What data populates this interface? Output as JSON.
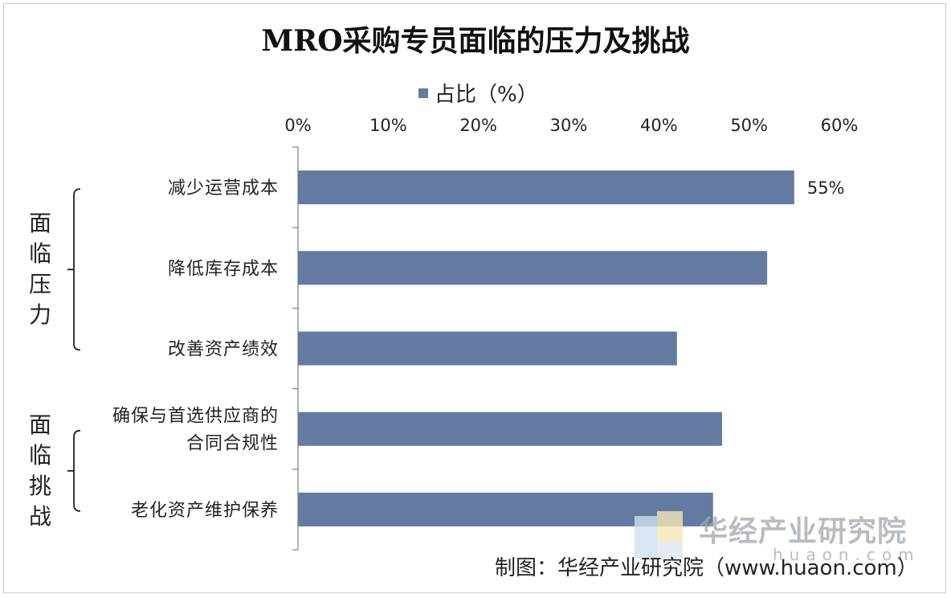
{
  "chart_data": {
    "type": "bar",
    "orientation": "horizontal",
    "title": "MRO采购专员面临的压力及挑战",
    "legend": {
      "label": "占比（%）",
      "placement": "top",
      "color": "#647aa1"
    },
    "categories": [
      "减少运营成本",
      "降低库存成本",
      "改善资产绩效",
      "确保与首选供应商的合同合规性",
      "老化资产维护保养"
    ],
    "category_lines": [
      [
        "减少运营成本"
      ],
      [
        "降低库存成本"
      ],
      [
        "改善资产绩效"
      ],
      [
        "确保与首选供应商的",
        "合同合规性"
      ],
      [
        "老化资产维护保养"
      ]
    ],
    "series": [
      {
        "name": "占比（%）",
        "values": [
          55,
          52,
          42,
          47,
          46
        ]
      }
    ],
    "data_labels": [
      {
        "category_index": 0,
        "text": "55%"
      }
    ],
    "xlim": [
      0,
      60
    ],
    "x_axis_position": "top",
    "x_ticks": [
      0,
      10,
      20,
      30,
      40,
      50,
      60
    ],
    "x_tick_labels": [
      "0%",
      "10%",
      "20%",
      "30%",
      "40%",
      "50%",
      "60%"
    ],
    "grid": false,
    "bar_color": "#647aa1",
    "groups": [
      {
        "label": "面临压力",
        "category_indices": [
          0,
          1,
          2
        ]
      },
      {
        "label": "面临挑战",
        "category_indices": [
          3,
          4
        ]
      }
    ]
  },
  "watermark": {
    "name": "华经产业研究院",
    "domain": "huaon.com"
  },
  "source_note": "制图：华经产业研究院（www.huaon.com）"
}
